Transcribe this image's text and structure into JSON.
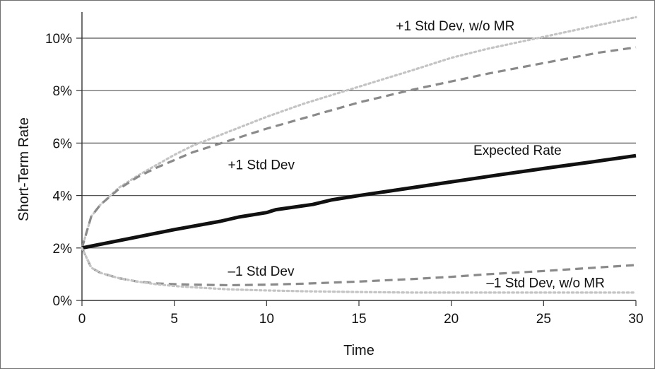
{
  "chart_data": {
    "type": "line",
    "title": "",
    "xlabel": "Time",
    "ylabel": "Short-Term Rate",
    "xlim": [
      0,
      30
    ],
    "ylim": [
      0,
      10
    ],
    "x_ticks": [
      0,
      5,
      10,
      15,
      20,
      25,
      30
    ],
    "y_ticks": [
      0,
      2,
      4,
      6,
      8,
      10
    ],
    "y_tick_format": "percent",
    "grid": "horizontal",
    "legend": "none",
    "series": [
      {
        "id": "plus-std-wo-mr",
        "name": "+1 Std Dev, w/o MR",
        "style": "dotted",
        "color": "#c4c4c4",
        "x": [
          0,
          0.5,
          1,
          2,
          3,
          4,
          5,
          6,
          8,
          10,
          12,
          15,
          18,
          20,
          22,
          25,
          28,
          30
        ],
        "y": [
          2.0,
          3.2,
          3.65,
          4.3,
          4.75,
          5.15,
          5.55,
          5.9,
          6.45,
          7.0,
          7.5,
          8.15,
          8.8,
          9.25,
          9.6,
          10.05,
          10.5,
          10.8
        ]
      },
      {
        "id": "plus-std",
        "name": "+1 Std Dev",
        "style": "dashed",
        "color": "#8a8a8a",
        "x": [
          0,
          0.5,
          1,
          2,
          3,
          4,
          5,
          6,
          8,
          10,
          12,
          15,
          18,
          20,
          22,
          25,
          28,
          30
        ],
        "y": [
          2.0,
          3.2,
          3.65,
          4.25,
          4.7,
          5.05,
          5.35,
          5.65,
          6.1,
          6.55,
          6.95,
          7.55,
          8.05,
          8.35,
          8.65,
          9.05,
          9.45,
          9.65
        ]
      },
      {
        "id": "expected",
        "name": "Expected Rate",
        "style": "solid",
        "color": "#111111",
        "x": [
          0,
          2.5,
          5,
          7.5,
          8.5,
          10,
          10.5,
          12.5,
          13.5,
          15,
          17.5,
          20,
          22.5,
          25,
          27.5,
          30
        ],
        "y": [
          2.0,
          2.35,
          2.7,
          3.02,
          3.18,
          3.35,
          3.46,
          3.66,
          3.83,
          4.0,
          4.26,
          4.52,
          4.78,
          5.03,
          5.27,
          5.52
        ]
      },
      {
        "id": "minus-std",
        "name": "–1 Std Dev",
        "style": "dashed",
        "color": "#8a8a8a",
        "x": [
          0,
          0.5,
          1,
          2,
          3,
          4,
          5,
          6,
          8,
          10,
          12,
          15,
          18,
          20,
          22,
          25,
          28,
          30
        ],
        "y": [
          2.0,
          1.25,
          1.05,
          0.85,
          0.72,
          0.65,
          0.62,
          0.6,
          0.58,
          0.6,
          0.64,
          0.72,
          0.82,
          0.9,
          1.0,
          1.12,
          1.26,
          1.35
        ]
      },
      {
        "id": "minus-std-wo-mr",
        "name": "–1 Std Dev, w/o MR",
        "style": "dotted",
        "color": "#c4c4c4",
        "x": [
          0,
          0.5,
          1,
          2,
          3,
          4,
          5,
          6,
          8,
          10,
          12,
          15,
          18,
          20,
          22,
          25,
          28,
          30
        ],
        "y": [
          2.0,
          1.25,
          1.05,
          0.85,
          0.72,
          0.62,
          0.55,
          0.5,
          0.42,
          0.38,
          0.35,
          0.32,
          0.3,
          0.3,
          0.3,
          0.3,
          0.3,
          0.3
        ]
      }
    ],
    "annotations": [
      {
        "id": "plus-std-wo-mr",
        "text": "+1 Std Dev, w/o MR",
        "x": 17,
        "y": 10.3,
        "anchor": "start"
      },
      {
        "id": "plus-std",
        "text": "+1 Std Dev",
        "x": 7.9,
        "y": 5.0,
        "anchor": "start"
      },
      {
        "id": "expected",
        "text": "Expected Rate",
        "x": 21.2,
        "y": 5.55,
        "anchor": "start"
      },
      {
        "id": "minus-std",
        "text": "–1 Std Dev",
        "x": 7.9,
        "y": 0.95,
        "anchor": "start"
      },
      {
        "id": "minus-std-wo-mr",
        "text": "–1 Std Dev, w/o MR",
        "x": 21.9,
        "y": 0.5,
        "anchor": "start"
      }
    ]
  }
}
